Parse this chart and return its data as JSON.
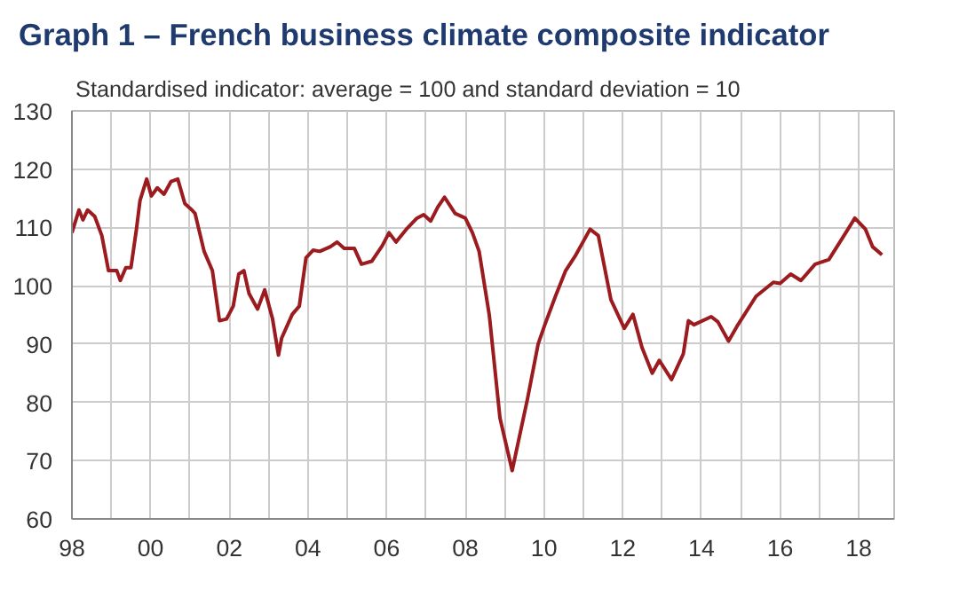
{
  "chart_data": {
    "type": "line",
    "title": "Graph 1 – French business climate composite indicator",
    "subtitle": "Standardised indicator: average = 100 and standard deviation = 10",
    "x": [
      1998.0,
      1998.18,
      1998.28,
      1998.4,
      1998.58,
      1998.76,
      1998.93,
      1999.14,
      1999.23,
      1999.37,
      1999.5,
      1999.64,
      1999.73,
      1999.9,
      2000.02,
      2000.17,
      2000.34,
      2000.52,
      2000.69,
      2000.87,
      2001.05,
      2001.13,
      2001.36,
      2001.57,
      2001.75,
      2001.93,
      2002.1,
      2002.24,
      2002.37,
      2002.5,
      2002.72,
      2002.9,
      2003.1,
      2003.25,
      2003.33,
      2003.6,
      2003.78,
      2003.95,
      2004.13,
      2004.3,
      2004.57,
      2004.74,
      2004.92,
      2005.18,
      2005.36,
      2005.62,
      2005.89,
      2006.06,
      2006.24,
      2006.5,
      2006.77,
      2006.94,
      2007.12,
      2007.3,
      2007.47,
      2007.74,
      2008.0,
      2008.18,
      2008.35,
      2008.61,
      2008.88,
      2009.19,
      2009.58,
      2009.85,
      2010.02,
      2010.29,
      2010.55,
      2010.81,
      2011.17,
      2011.38,
      2011.7,
      2012.04,
      2012.26,
      2012.49,
      2012.75,
      2012.93,
      2013.24,
      2013.54,
      2013.67,
      2013.81,
      2014.25,
      2014.42,
      2014.69,
      2014.9,
      2015.39,
      2015.83,
      2016.0,
      2016.27,
      2016.53,
      2016.89,
      2017.24,
      2017.68,
      2017.9,
      2018.17,
      2018.35,
      2018.59
    ],
    "series": [
      {
        "color": "#9b1b1f",
        "values": [
          109.1,
          113,
          111.3,
          113,
          111.9,
          108.6,
          102.6,
          102.6,
          100.9,
          103.1,
          103.1,
          109.7,
          114.6,
          118.3,
          115.4,
          116.8,
          115.7,
          117.9,
          118.3,
          114.1,
          113,
          112.4,
          105.9,
          102.6,
          94,
          94.3,
          96.5,
          102,
          102.6,
          98.7,
          96,
          99.3,
          94.3,
          88.1,
          91,
          95.1,
          96.5,
          104.8,
          106.1,
          105.9,
          106.7,
          107.5,
          106.4,
          106.4,
          103.7,
          104.2,
          106.9,
          109.1,
          107.5,
          109.7,
          111.6,
          112.2,
          111.1,
          113.5,
          115.2,
          112.4,
          111.6,
          109.1,
          105.9,
          94.9,
          77.3,
          68.3,
          80.6,
          90,
          93.3,
          98.2,
          102.6,
          105.3,
          109.7,
          108.6,
          97.6,
          92.7,
          95.1,
          89.4,
          85,
          87.2,
          83.9,
          88.3,
          94,
          93.3,
          94.7,
          93.8,
          90.5,
          93,
          98.2,
          100.6,
          100.4,
          102,
          100.9,
          103.7,
          104.5,
          109.2,
          111.6,
          109.7,
          106.7,
          105.3
        ]
      }
    ],
    "xlim": [
      1998,
      2018.9
    ],
    "ylim": [
      60,
      130
    ],
    "xticks": [
      {
        "value": 1998,
        "label": "98"
      },
      {
        "value": 1999,
        "label": null
      },
      {
        "value": 2000,
        "label": "00"
      },
      {
        "value": 2001,
        "label": null
      },
      {
        "value": 2002,
        "label": "02"
      },
      {
        "value": 2003,
        "label": null
      },
      {
        "value": 2004,
        "label": "04"
      },
      {
        "value": 2005,
        "label": null
      },
      {
        "value": 2006,
        "label": "06"
      },
      {
        "value": 2007,
        "label": null
      },
      {
        "value": 2008,
        "label": "08"
      },
      {
        "value": 2009,
        "label": null
      },
      {
        "value": 2010,
        "label": "10"
      },
      {
        "value": 2011,
        "label": null
      },
      {
        "value": 2012,
        "label": "12"
      },
      {
        "value": 2013,
        "label": null
      },
      {
        "value": 2014,
        "label": "14"
      },
      {
        "value": 2015,
        "label": null
      },
      {
        "value": 2016,
        "label": "16"
      },
      {
        "value": 2017,
        "label": null
      },
      {
        "value": 2018,
        "label": "18"
      }
    ],
    "yticks": [
      60,
      70,
      80,
      90,
      100,
      110,
      120,
      130
    ],
    "grid": true,
    "marker": "none",
    "line_style": "solid"
  }
}
